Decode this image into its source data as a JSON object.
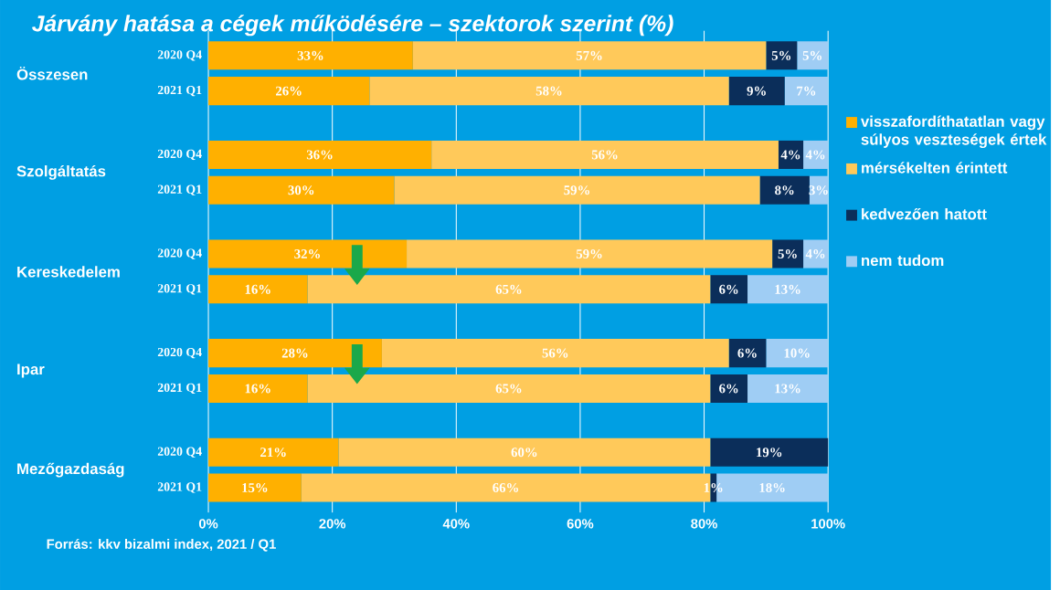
{
  "chart_data": {
    "type": "bar",
    "orientation": "horizontal",
    "stacked": true,
    "title": "Járvány hatása a cégek működésére – szektorok szerint (%)",
    "categories": [
      "2020 Q4",
      "2021 Q1",
      "2020 Q4",
      "2021 Q1",
      "2020 Q4",
      "2021 Q1",
      "2020 Q4",
      "2021 Q1",
      "2020 Q4",
      "2021 Q1"
    ],
    "series": [
      {
        "name": "visszafordíthatatlan vagy súlyos veszteségek értek",
        "color": "#ffb000",
        "values": [
          33,
          26,
          36,
          30,
          32,
          16,
          28,
          16,
          21,
          15
        ],
        "value_labels": [
          "33%",
          "26%",
          "36%",
          "30%",
          "32%",
          "16%",
          "28%",
          "16%",
          "21%",
          "15%"
        ]
      },
      {
        "name": "mérsékelten érintett",
        "color": "#ffc95a",
        "values": [
          57,
          58,
          56,
          59,
          59,
          65,
          56,
          65,
          60,
          66
        ],
        "value_labels": [
          "57%",
          "58%",
          "56%",
          "59%",
          "59%",
          "65%",
          "56%",
          "65%",
          "60%",
          "66%"
        ]
      },
      {
        "name": "kedvezően hatott",
        "color": "#0b2e5a",
        "values": [
          5,
          9,
          4,
          8,
          5,
          6,
          6,
          6,
          19,
          1
        ],
        "value_labels": [
          "5%",
          "9%",
          "4%",
          "8%",
          "5%",
          "6%",
          "6%",
          "6%",
          "19%",
          "1%"
        ]
      },
      {
        "name": "nem tudom",
        "color": "#9fcdf4",
        "values": [
          5,
          7,
          4,
          3,
          4,
          13,
          10,
          13,
          null,
          18
        ],
        "value_labels": [
          "5%",
          "7%",
          "4%",
          "3%",
          "4%",
          "13%",
          "10%",
          "13%",
          null,
          "18%"
        ]
      }
    ],
    "xlim": [
      0,
      100
    ],
    "xticks": [
      {
        "value": 0,
        "label": "0%"
      },
      {
        "value": 20,
        "label": "20%"
      },
      {
        "value": 40,
        "label": "40%"
      },
      {
        "value": 60,
        "label": "60%"
      },
      {
        "value": 80,
        "label": "80%"
      },
      {
        "value": 100,
        "label": "100%"
      }
    ],
    "grid": "x",
    "legend": "right",
    "annotations": [
      "Összesen",
      "Szolgáltatás",
      "Kereskedelem",
      "Ipar",
      "Mezőgazdaság",
      "Forrás: kkv bizalmi index, 2021 / Q1"
    ]
  }
}
